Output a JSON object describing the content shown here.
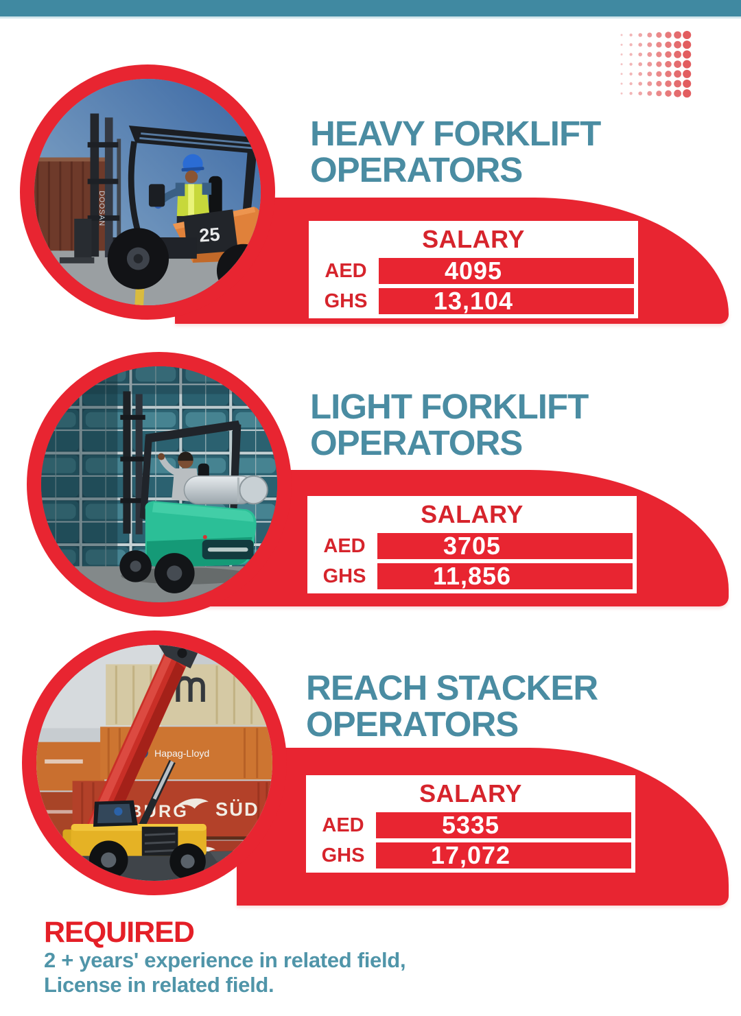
{
  "colors": {
    "red": "#e82531",
    "red_text": "#d6242c",
    "teal_title": "#4a8ca2",
    "teal_bar": "#4089a1",
    "teal_body": "#5095a9",
    "dot": "#e05456"
  },
  "sections": [
    {
      "title_line1": "HEAVY FORKLIFT",
      "title_line2": "OPERATORS",
      "salary": {
        "header": "SALARY",
        "rows": [
          {
            "currency": "AED",
            "amount": "4095"
          },
          {
            "currency": "GHS",
            "amount": "13,104"
          }
        ]
      },
      "photo": {
        "brand": "DOOSAN",
        "model": "25"
      }
    },
    {
      "title_line1": "LIGHT FORKLIFT",
      "title_line2": "OPERATORS",
      "salary": {
        "header": "SALARY",
        "rows": [
          {
            "currency": "AED",
            "amount": "3705"
          },
          {
            "currency": "GHS",
            "amount": "11,856"
          }
        ]
      },
      "photo": {}
    },
    {
      "title_line1": "REACH STACKER",
      "title_line2": "OPERATORS",
      "salary": {
        "header": "SALARY",
        "rows": [
          {
            "currency": "AED",
            "amount": "5335"
          },
          {
            "currency": "GHS",
            "amount": "17,072"
          }
        ]
      },
      "photo": {
        "container_labels": {
          "hapag": "Hapag-Lloyd",
          "hamburg": "MBURG",
          "sud": "SÜD"
        }
      }
    }
  ],
  "footer": {
    "heading": "REQUIRED",
    "lines": [
      "2 + years' experience in related field,",
      "License in related field."
    ]
  }
}
